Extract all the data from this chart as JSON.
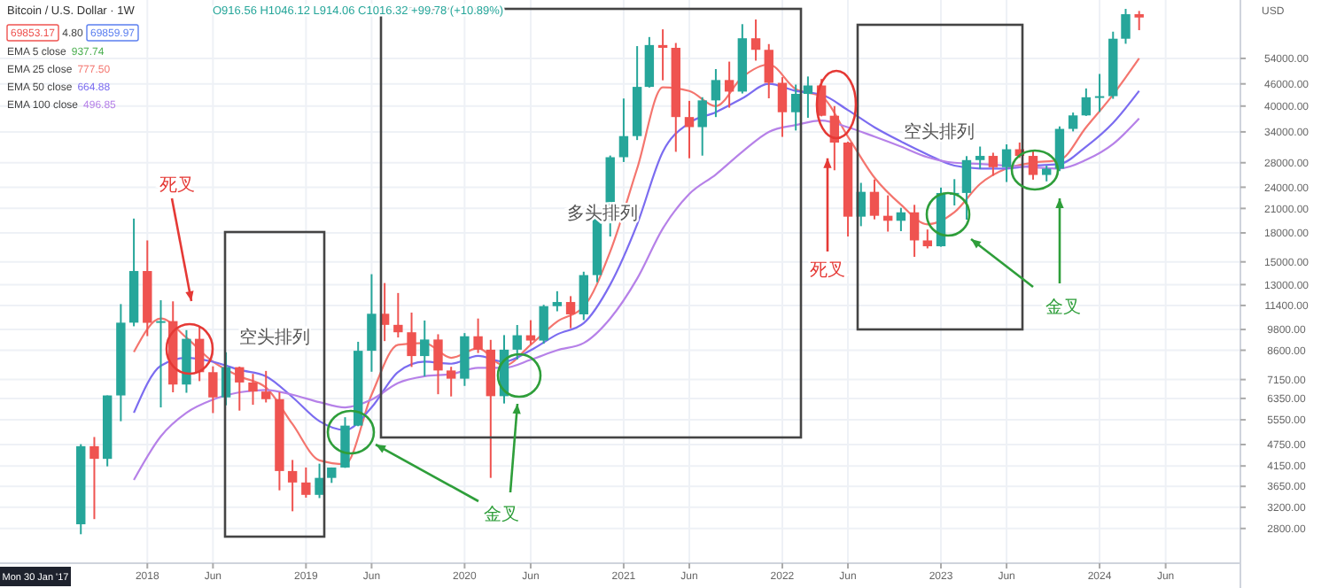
{
  "chart_data": {
    "type": "candlestick",
    "title": "Bitcoin / U.S. Dollar · 1W",
    "subtitle": "O916.56 H1046.12 L914.06 C1016.32 +99.78 (+10.89%)",
    "log": true,
    "grid": true,
    "xlim": [
      "2017-01-27",
      "2024-11-20"
    ],
    "xticks": [
      {
        "value": "2018-01",
        "label": "2018"
      },
      {
        "value": "2018-06",
        "label": "Jun"
      },
      {
        "value": "2019-01",
        "label": "2019"
      },
      {
        "value": "2019-06",
        "label": "Jun"
      },
      {
        "value": "2020-01",
        "label": "2020"
      },
      {
        "value": "2020-06",
        "label": "Jun"
      },
      {
        "value": "2021-01",
        "label": "2021"
      },
      {
        "value": "2021-06",
        "label": "Jun"
      },
      {
        "value": "2022-01",
        "label": "2022"
      },
      {
        "value": "2022-06",
        "label": "Jun"
      },
      {
        "value": "2023-01",
        "label": "2023"
      },
      {
        "value": "2023-06",
        "label": "Jun"
      },
      {
        "value": "2024-01",
        "label": "2024"
      },
      {
        "value": "2024-06",
        "label": "Jun"
      }
    ],
    "ylim": [
      2250,
      78000
    ],
    "yticks": [
      {
        "value": 54000,
        "label": "54000.00"
      },
      {
        "value": 46000,
        "label": "46000.00"
      },
      {
        "value": 40000,
        "label": "40000.00"
      },
      {
        "value": 34000,
        "label": "34000.00"
      },
      {
        "value": 28000,
        "label": "28000.00"
      },
      {
        "value": 24000,
        "label": "24000.00"
      },
      {
        "value": 21000,
        "label": "21000.00"
      },
      {
        "value": 18000,
        "label": "18000.00"
      },
      {
        "value": 15000,
        "label": "15000.00"
      },
      {
        "value": 13000,
        "label": "13000.00"
      },
      {
        "value": 11400,
        "label": "11400.00"
      },
      {
        "value": 9800,
        "label": "9800.00"
      },
      {
        "value": 8600,
        "label": "8600.00"
      },
      {
        "value": 7150,
        "label": "7150.00"
      },
      {
        "value": 6350,
        "label": "6350.00"
      },
      {
        "value": 5550,
        "label": "5550.00"
      },
      {
        "value": 4750,
        "label": "4750.00"
      },
      {
        "value": 4150,
        "label": "4150.00"
      },
      {
        "value": 3650,
        "label": "3650.00"
      },
      {
        "value": 3200,
        "label": "3200.00"
      },
      {
        "value": 2800,
        "label": "2800.00"
      }
    ],
    "series": [
      {
        "x": [
          "2017-08",
          "2017-09",
          "2017-10",
          "2017-11",
          "2017-12",
          "2018-01",
          "2018-02",
          "2018-03",
          "2018-04",
          "2018-05",
          "2018-06",
          "2018-07",
          "2018-08",
          "2018-09",
          "2018-10",
          "2018-11",
          "2018-12",
          "2019-01",
          "2019-02",
          "2019-03",
          "2019-04",
          "2019-05",
          "2019-06",
          "2019-07",
          "2019-08",
          "2019-09",
          "2019-10",
          "2019-11",
          "2019-12",
          "2020-01",
          "2020-02",
          "2020-03",
          "2020-04",
          "2020-05",
          "2020-06",
          "2020-07",
          "2020-08",
          "2020-09",
          "2020-10",
          "2020-11",
          "2020-12",
          "2021-01",
          "2021-02",
          "2021-03",
          "2021-04",
          "2021-05",
          "2021-06",
          "2021-07",
          "2021-08",
          "2021-09",
          "2021-10",
          "2021-11",
          "2021-12",
          "2022-01",
          "2022-02",
          "2022-03",
          "2022-04",
          "2022-05",
          "2022-06",
          "2022-07",
          "2022-08",
          "2022-09",
          "2022-10",
          "2022-11",
          "2022-12",
          "2023-01",
          "2023-02",
          "2023-03",
          "2023-04",
          "2023-05",
          "2023-06",
          "2023-07",
          "2023-08",
          "2023-09",
          "2023-10",
          "2023-11",
          "2023-12",
          "2024-01",
          "2024-02",
          "2024-03",
          "2024-04"
        ],
        "ohlc": [
          [
            2875,
            4760,
            2700,
            4700
          ],
          [
            4700,
            4980,
            2970,
            4340
          ],
          [
            4340,
            6470,
            4140,
            6470
          ],
          [
            6470,
            11500,
            5500,
            10230
          ],
          [
            10230,
            19700,
            10000,
            14160
          ],
          [
            14160,
            17170,
            9400,
            10220
          ],
          [
            10220,
            11780,
            6000,
            10330
          ],
          [
            10330,
            11700,
            6600,
            6930
          ],
          [
            6930,
            9760,
            6580,
            9240
          ],
          [
            9240,
            9990,
            7080,
            7490
          ],
          [
            7490,
            7770,
            5790,
            6390
          ],
          [
            6390,
            8490,
            6080,
            7730
          ],
          [
            7730,
            7760,
            5880,
            7020
          ],
          [
            7020,
            7410,
            6100,
            6630
          ],
          [
            6630,
            7550,
            6190,
            6320
          ],
          [
            6320,
            6600,
            3560,
            4020
          ],
          [
            4020,
            4310,
            3120,
            3740
          ],
          [
            3740,
            4110,
            3400,
            3460
          ],
          [
            3460,
            4210,
            3390,
            3850
          ],
          [
            3850,
            4110,
            3730,
            4110
          ],
          [
            4110,
            5640,
            4100,
            5350
          ],
          [
            5350,
            9070,
            5330,
            8570
          ],
          [
            8570,
            13880,
            7510,
            10820
          ],
          [
            10820,
            13130,
            9110,
            10090
          ],
          [
            10090,
            12330,
            9320,
            9630
          ],
          [
            9630,
            10900,
            7740,
            8290
          ],
          [
            8290,
            10370,
            7300,
            9200
          ],
          [
            9200,
            9510,
            6520,
            7570
          ],
          [
            7570,
            7750,
            6430,
            7190
          ],
          [
            7190,
            9580,
            6870,
            9390
          ],
          [
            9390,
            10500,
            8450,
            8630
          ],
          [
            8630,
            9180,
            3850,
            6440
          ],
          [
            6440,
            9460,
            6150,
            8630
          ],
          [
            8630,
            10080,
            8110,
            9450
          ],
          [
            9450,
            10390,
            8900,
            9140
          ],
          [
            9140,
            11450,
            8960,
            11350
          ],
          [
            11350,
            12470,
            10990,
            11650
          ],
          [
            11650,
            12090,
            9880,
            10780
          ],
          [
            10780,
            14100,
            10400,
            13800
          ],
          [
            13800,
            19800,
            13200,
            19700
          ],
          [
            19700,
            29300,
            17600,
            28990
          ],
          [
            28990,
            41950,
            28130,
            33110
          ],
          [
            33110,
            58350,
            32300,
            45140
          ],
          [
            45140,
            61780,
            44950,
            58740
          ],
          [
            58740,
            64850,
            47050,
            57720
          ],
          [
            57720,
            59500,
            30000,
            37330
          ],
          [
            37330,
            41330,
            28800,
            35040
          ],
          [
            35040,
            42300,
            29280,
            41460
          ],
          [
            41460,
            50500,
            37330,
            47130
          ],
          [
            47130,
            52920,
            39600,
            43820
          ],
          [
            43820,
            67000,
            43300,
            61300
          ],
          [
            61300,
            69000,
            53250,
            57000
          ],
          [
            57000,
            59100,
            42000,
            46310
          ],
          [
            46310,
            47990,
            32950,
            38480
          ],
          [
            38480,
            45800,
            34300,
            43190
          ],
          [
            43190,
            48190,
            37160,
            45540
          ],
          [
            45540,
            47440,
            37500,
            37640
          ],
          [
            37640,
            40000,
            26700,
            31790
          ],
          [
            31790,
            31960,
            17600,
            19940
          ],
          [
            19940,
            24670,
            18780,
            23310
          ],
          [
            23310,
            25200,
            19600,
            20050
          ],
          [
            20050,
            22800,
            18150,
            19430
          ],
          [
            19430,
            21080,
            18200,
            20490
          ],
          [
            20490,
            21480,
            15480,
            17170
          ],
          [
            17170,
            18390,
            16330,
            16550
          ],
          [
            16550,
            23950,
            16500,
            23140
          ],
          [
            23140,
            25250,
            21400,
            23150
          ],
          [
            23150,
            29190,
            19570,
            28470
          ],
          [
            28470,
            31000,
            26940,
            29230
          ],
          [
            29230,
            29820,
            25800,
            27220
          ],
          [
            27220,
            31430,
            24800,
            30480
          ],
          [
            30480,
            31800,
            28860,
            29230
          ],
          [
            29230,
            30240,
            25170,
            25930
          ],
          [
            25930,
            27480,
            24900,
            26970
          ],
          [
            26970,
            35200,
            26560,
            34650
          ],
          [
            34650,
            38400,
            34100,
            37720
          ],
          [
            37720,
            44700,
            37600,
            42280
          ],
          [
            42280,
            48970,
            38550,
            42580
          ],
          [
            42580,
            63900,
            41880,
            61130
          ],
          [
            61130,
            73750,
            59220,
            71330
          ],
          [
            71330,
            72800,
            64500,
            69860
          ]
        ]
      },
      {
        "type": "line",
        "color": "#f4756e",
        "x": [
          "2017-12",
          "2018-02",
          "2018-04",
          "2018-06",
          "2018-08",
          "2018-10",
          "2018-12",
          "2019-02",
          "2019-04",
          "2019-06",
          "2019-08",
          "2019-10",
          "2019-12",
          "2020-02",
          "2020-04",
          "2020-06",
          "2020-08",
          "2020-10",
          "2020-12",
          "2021-02",
          "2021-04",
          "2021-06",
          "2021-08",
          "2021-10",
          "2021-12",
          "2022-02",
          "2022-04",
          "2022-06",
          "2022-08",
          "2022-10",
          "2022-12",
          "2023-02",
          "2023-04",
          "2023-06",
          "2023-08",
          "2023-10",
          "2023-12",
          "2024-02",
          "2024-04"
        ],
        "values": [
          8500,
          10500,
          9300,
          8000,
          7300,
          6800,
          5400,
          4300,
          4200,
          6500,
          8900,
          9000,
          8200,
          8700,
          7800,
          8900,
          10300,
          11300,
          16000,
          27000,
          45000,
          44000,
          40000,
          48000,
          52000,
          44500,
          42500,
          33000,
          25500,
          21500,
          19000,
          20500,
          24500,
          27000,
          28000,
          28500,
          35000,
          43000,
          54000
        ]
      },
      {
        "type": "line",
        "color": "#7b6cf0",
        "x": [
          "2017-12",
          "2018-02",
          "2018-04",
          "2018-06",
          "2018-08",
          "2018-10",
          "2018-12",
          "2019-02",
          "2019-04",
          "2019-06",
          "2019-08",
          "2019-10",
          "2019-12",
          "2020-02",
          "2020-04",
          "2020-06",
          "2020-08",
          "2020-10",
          "2020-12",
          "2021-02",
          "2021-04",
          "2021-06",
          "2021-08",
          "2021-10",
          "2021-12",
          "2022-02",
          "2022-04",
          "2022-06",
          "2022-08",
          "2022-10",
          "2022-12",
          "2023-02",
          "2023-04",
          "2023-06",
          "2023-08",
          "2023-10",
          "2023-12",
          "2024-02",
          "2024-04"
        ],
        "values": [
          5800,
          7800,
          8200,
          8000,
          7600,
          7300,
          6400,
          5500,
          5200,
          6000,
          7500,
          8000,
          7900,
          8300,
          8000,
          8600,
          9500,
          10200,
          13000,
          19000,
          30000,
          36000,
          38500,
          42000,
          46000,
          44000,
          43000,
          39000,
          35000,
          32000,
          29500,
          27500,
          27000,
          27000,
          27500,
          27800,
          31000,
          36000,
          44000
        ]
      },
      {
        "type": "line",
        "color": "#b681e8",
        "x": [
          "2017-12",
          "2018-02",
          "2018-04",
          "2018-06",
          "2018-08",
          "2018-10",
          "2018-12",
          "2019-02",
          "2019-04",
          "2019-06",
          "2019-08",
          "2019-10",
          "2019-12",
          "2020-02",
          "2020-04",
          "2020-06",
          "2020-08",
          "2020-10",
          "2020-12",
          "2021-02",
          "2021-04",
          "2021-06",
          "2021-08",
          "2021-10",
          "2021-12",
          "2022-02",
          "2022-04",
          "2022-06",
          "2022-08",
          "2022-10",
          "2022-12",
          "2023-02",
          "2023-04",
          "2023-06",
          "2023-08",
          "2023-10",
          "2023-12",
          "2024-02",
          "2024-04"
        ],
        "values": [
          3800,
          5000,
          5800,
          6300,
          6600,
          6700,
          6500,
          6200,
          6000,
          6300,
          7000,
          7300,
          7400,
          7700,
          7700,
          8100,
          8600,
          9000,
          10500,
          13500,
          18500,
          23000,
          26000,
          30000,
          34000,
          35500,
          36500,
          35000,
          33000,
          31000,
          29000,
          28000,
          27800,
          27500,
          27200,
          27000,
          28500,
          31500,
          37000
        ]
      }
    ],
    "annotations": [
      "死叉",
      "空头排列",
      "金叉",
      "多头排列",
      {
        "text": "死叉",
        "x": "2022-04-15",
        "y": 28800
      },
      "空头排列",
      "金叉",
      "Mon 30 Jan '17",
      "69853.17",
      "4.80",
      "69859.97",
      "EMA 5 close 937.74",
      "EMA 25 close 777.50",
      "EMA 50 close 664.88",
      "EMA 100 close 496.85",
      "USD"
    ]
  }
}
